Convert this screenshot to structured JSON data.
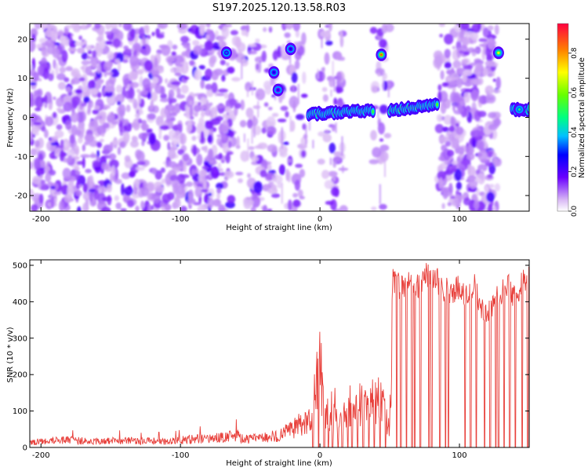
{
  "title": "S197.2025.120.13.58.R03",
  "colors": {
    "snr_line": "#e8413c",
    "frame": "#000000"
  },
  "chart_data": [
    {
      "type": "heatmap",
      "xlabel": "Height of straight line (km)",
      "ylabel": "Frequency (Hz)",
      "xlim": [
        -208,
        150
      ],
      "ylim": [
        -24,
        24
      ],
      "xticks": [
        -200,
        -100,
        0,
        100
      ],
      "yticks": [
        -20,
        -10,
        0,
        10,
        20
      ],
      "colorbar": {
        "label": "Normalized spectral amplitude",
        "range": [
          0.0,
          0.95
        ],
        "ticks": [
          0.0,
          0.2,
          0.4,
          0.6,
          0.8
        ],
        "tick_labels": [
          "0.0",
          "0.2",
          "0.4",
          "0.6",
          "0.8"
        ]
      },
      "blank_bands_km": [
        [
          -10,
          0
        ],
        [
          17,
          38
        ],
        [
          50,
          84
        ],
        [
          128,
          150
        ]
      ],
      "sparse_bands_km": [
        [
          -62,
          -10
        ],
        [
          0,
          17
        ],
        [
          38,
          50
        ]
      ],
      "features": [
        {
          "x": -67,
          "freq": 16.5,
          "amp": 0.35
        },
        {
          "x": -33,
          "freq": 11.5,
          "amp": 0.3
        },
        {
          "x": -30,
          "freq": 7.0,
          "amp": 0.25
        },
        {
          "x": -21,
          "freq": 17.5,
          "amp": 0.3
        },
        {
          "x": 44,
          "freq": 16.0,
          "amp": 0.9
        },
        {
          "x": 128,
          "freq": 16.5,
          "amp": 0.75
        },
        {
          "x": 143,
          "freq": 2.0,
          "amp": 0.5
        }
      ],
      "tone_segments": [
        {
          "x_start": -8,
          "x_end": 38,
          "freq_start": 0.8,
          "freq_end": 1.8,
          "amp": 0.55
        },
        {
          "x_start": 50,
          "x_end": 84,
          "freq_start": 1.8,
          "freq_end": 3.2,
          "amp": 0.6
        },
        {
          "x_start": 138,
          "x_end": 150,
          "freq_start": 2.0,
          "freq_end": 2.0,
          "amp": 0.5
        }
      ]
    },
    {
      "type": "line",
      "xlabel": "Height of straight line (km)",
      "ylabel": "SNR (10 * v/v)",
      "xlim": [
        -208,
        150
      ],
      "ylim": [
        0,
        515
      ],
      "xticks": [
        -200,
        -100,
        0,
        100
      ],
      "yticks": [
        0,
        100,
        200,
        300,
        400,
        500
      ],
      "series": [
        {
          "x": [
            -208,
            -200,
            -190,
            -180,
            -170,
            -160,
            -150,
            -140,
            -130,
            -120,
            -110,
            -100,
            -90,
            -80,
            -70,
            -60,
            -50,
            -40,
            -30,
            -20,
            -10,
            -5,
            -2,
            0,
            2,
            5,
            10,
            15,
            20,
            25,
            30,
            35,
            40,
            45,
            50,
            52,
            55,
            60,
            65,
            70,
            75,
            80,
            85,
            90,
            95,
            100,
            105,
            110,
            115,
            120,
            125,
            130,
            135,
            140,
            145,
            150
          ],
          "y": [
            15,
            18,
            20,
            22,
            20,
            18,
            20,
            22,
            18,
            20,
            18,
            22,
            25,
            28,
            30,
            35,
            25,
            30,
            35,
            55,
            80,
            140,
            220,
            280,
            180,
            120,
            140,
            100,
            170,
            120,
            160,
            150,
            170,
            140,
            60,
            480,
            470,
            450,
            480,
            460,
            490,
            500,
            470,
            450,
            440,
            460,
            430,
            470,
            400,
            380,
            420,
            440,
            460,
            430,
            470,
            480
          ]
        }
      ]
    }
  ]
}
